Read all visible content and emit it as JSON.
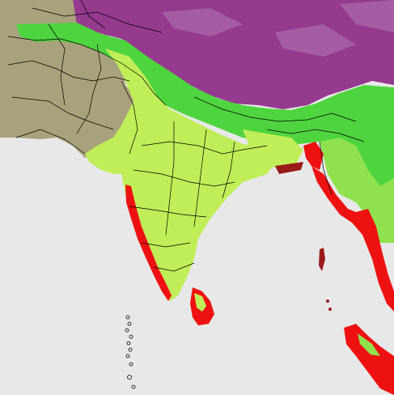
{
  "map": {
    "colors": {
      "ocean": "#e8e8e8",
      "arid": "#a8a27c",
      "dry_green": "#c0ee58",
      "moist_green": "#4ed43e",
      "mid_green": "#8fe24e",
      "highland": "#953a8e",
      "highland_light": "#b07ab4",
      "tropical_red": "#ee1111",
      "dark_red": "#9a1a1a",
      "border": "#000000"
    },
    "regions": [
      "ocean",
      "arid-west",
      "himalaya-highland",
      "indian-peninsula",
      "humid-east",
      "western-ghats-coast",
      "sri-lanka",
      "andaman-islands",
      "maldives",
      "burma-coast",
      "sumatra-north"
    ]
  }
}
